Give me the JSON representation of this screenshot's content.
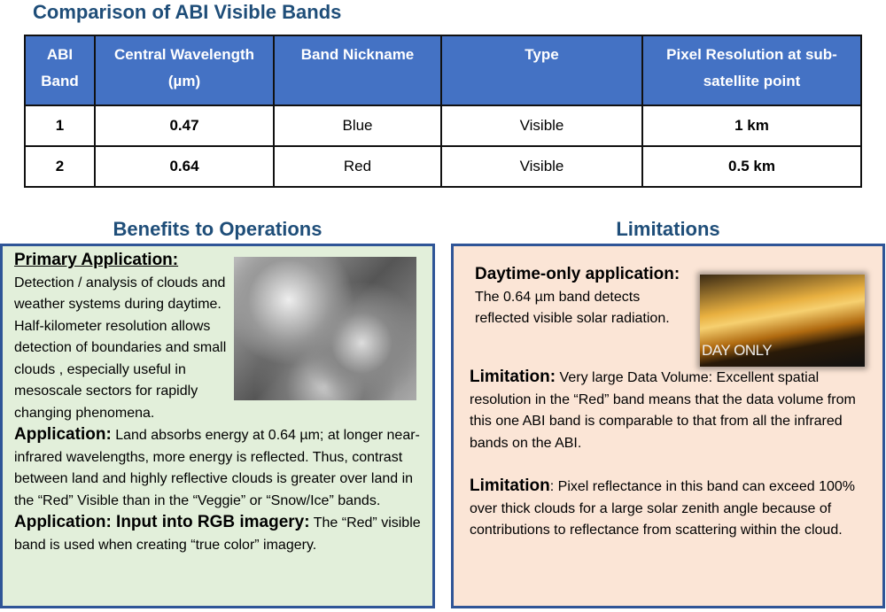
{
  "title": "Comparison of ABI Visible Bands",
  "table": {
    "headers": [
      "ABI Band",
      "Central Wavelength (µm)",
      "Band Nickname",
      "Type",
      "Pixel Resolution at sub-satellite point"
    ],
    "rows": [
      [
        "1",
        "0.47",
        "Blue",
        "Visible",
        "1 km"
      ],
      [
        "2",
        "0.64",
        "Red",
        "Visible",
        "0.5 km"
      ]
    ],
    "header_color": "#4472C4"
  },
  "benefits": {
    "heading": "Benefits to Operations",
    "primary_label": "Primary Application:",
    "primary_text": "Detection / analysis of clouds and weather systems during daytime.  Half-kilometer resolution allows  detection of boundaries and small clouds , especially useful in mesoscale sectors for rapidly changing phenomena.",
    "app_label": "Application:",
    "app_text": " Land absorbs energy at 0.64 µm; at longer near-infrared wavelengths, more energy is reflected.  Thus, contrast between land and highly reflective clouds is greater over land in the “Red” Visible than in the “Veggie” or “Snow/Ice” bands.",
    "rgb_label": "Application: Input into RGB imagery:",
    "rgb_text": " The “Red” visible band is used when creating “true color” imagery.",
    "bg_color": "#E2EFDA"
  },
  "limitations": {
    "heading": "Limitations",
    "day_label": "Daytime-only application:",
    "day_text": " The 0.64 µm band detects reflected visible solar radiation.",
    "day_image_text": "DAY ONLY",
    "lim1_label": "Limitation:",
    "lim1_text": "  Very large Data Volume:  Excellent spatial resolution in the “Red” band means that the data volume from this one ABI band is comparable to that from all the infrared bands on the ABI.",
    "lim2_label": "Limitation",
    "lim2_text": ": Pixel reflectance in this band can exceed 100% over thick clouds for a large solar zenith angle because of contributions to reflectance from scattering within the cloud.",
    "bg_color": "#FBE5D6"
  }
}
